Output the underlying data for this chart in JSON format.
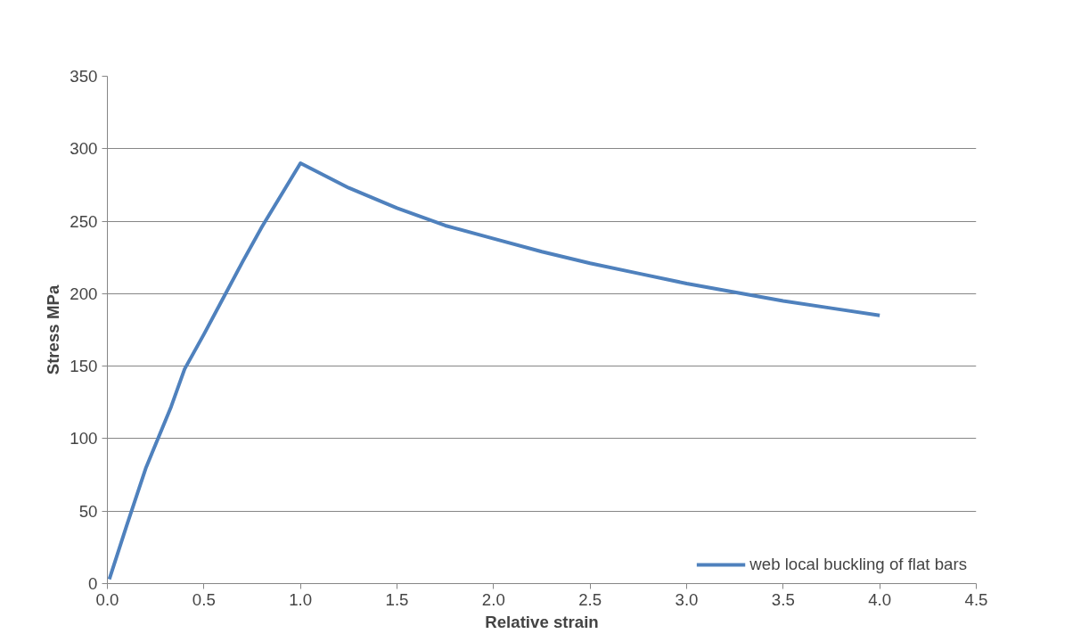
{
  "chart_data": {
    "type": "line",
    "xlabel": "Relative strain",
    "ylabel": "Stress MPa",
    "xlim": [
      0,
      4.5
    ],
    "xticks": [
      {
        "value": 0,
        "label": "0.0"
      },
      {
        "value": 0.5,
        "label": "0.5"
      },
      {
        "value": 1,
        "label": "1.0"
      },
      {
        "value": 1.5,
        "label": "1.5"
      },
      {
        "value": 2,
        "label": "2.0"
      },
      {
        "value": 2.5,
        "label": "2.5"
      },
      {
        "value": 3,
        "label": "3.0"
      },
      {
        "value": 3.5,
        "label": "3.5"
      },
      {
        "value": 4,
        "label": "4.0"
      },
      {
        "value": 4.5,
        "label": "4.5"
      }
    ],
    "ylim": [
      0,
      350
    ],
    "yticks": [
      0,
      50,
      100,
      150,
      200,
      250,
      300,
      350
    ],
    "grid": "y",
    "legend": "bottom right",
    "marker": "none",
    "line_style": "solid",
    "series": [
      {
        "name": "web local buckling of flat bars",
        "color": "#4f81bd",
        "x": [
          0.01,
          0.1,
          0.2,
          0.33,
          0.4,
          0.5,
          0.6,
          0.7,
          0.8,
          0.9,
          1.0,
          1.25,
          1.5,
          1.75,
          2.0,
          2.25,
          2.5,
          2.75,
          3.0,
          3.25,
          3.5,
          3.75,
          4.0
        ],
        "values": [
          3,
          40,
          80,
          122,
          148,
          172,
          197,
          222,
          246,
          268,
          290,
          273,
          259,
          247,
          238,
          229,
          221,
          214,
          207,
          201,
          195,
          190,
          185
        ]
      }
    ]
  }
}
